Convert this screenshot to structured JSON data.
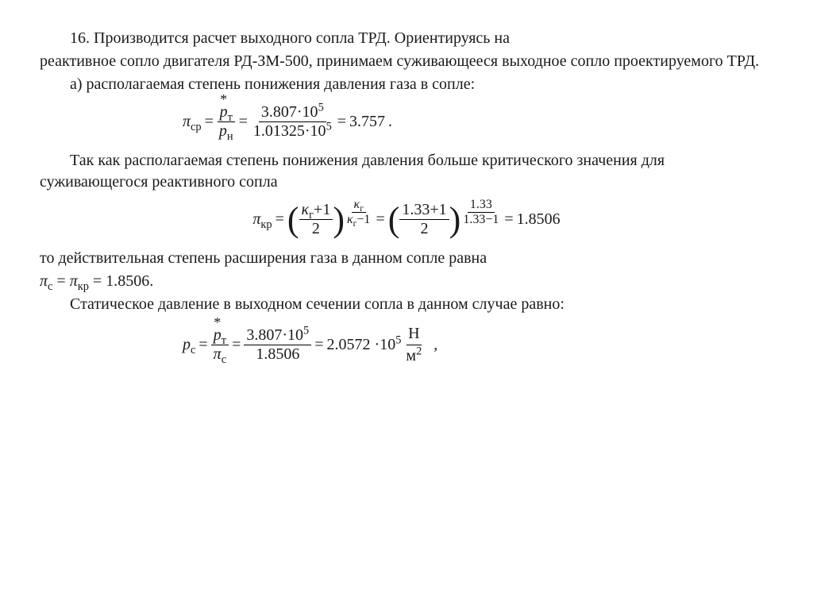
{
  "section_number": "16.",
  "p1a": "Производится расчет выходного сопла ТРД. Ориентируясь на",
  "p1b": "реактивное сопло двигателя РД-ЗМ-500, принимаем суживающееся выходное сопло проектируемого ТРД.",
  "p_a": "а) располагаемая степень понижения давления газа в сопле:",
  "eq1": {
    "lhs_sym": "π",
    "lhs_sub": "ср",
    "frac1_num_sym": "p",
    "frac1_num_sub": "т",
    "frac1_den_sym": "p",
    "frac1_den_sub": "н",
    "num2": "3.807·10",
    "num2_sup": "5",
    "den2": "1.01325·10",
    "den2_sup": "5",
    "result": "3.757",
    "trail": "."
  },
  "p2a": "Так как располагаемая степень понижения давления больше критического значения для суживающегося реактивного сопла",
  "eq2": {
    "lhs_sym": "π",
    "lhs_sub": "кр",
    "inner_num_a": "κ",
    "inner_num_a_sub": "г",
    "inner_num_b": "+1",
    "inner_den": "2",
    "exp_num_sym": "κ",
    "exp_num_sub": "г",
    "exp_den_a": "κ",
    "exp_den_a_sub": "г",
    "exp_den_b": "−1",
    "inner2_num": "1.33+1",
    "inner2_den": "2",
    "exp2_num": "1.33",
    "exp2_den": "1.33−1",
    "result": "1.8506"
  },
  "p3_line": "то действительная степень расширения газа в данном сопле равна",
  "eq3": {
    "sym1": "π",
    "sub1": "с",
    "sym2": "π",
    "sub2": "кр",
    "val": "1.8506",
    "trail": "."
  },
  "p4": "Статическое давление в выходном сечении сопла в данном случае равно:",
  "eq4": {
    "lhs_sym": "p",
    "lhs_sub": "с",
    "frac1_num_sym": "p",
    "frac1_num_sub": "т",
    "frac1_den_sym": "π",
    "frac1_den_sub": "с",
    "num2": "3.807·10",
    "num2_sup": "5",
    "den2": "1.8506",
    "result": "2.0572 ·10",
    "result_sup": "5",
    "unit_num": "Н",
    "unit_den_base": "м",
    "unit_den_sup": "2",
    "trail": ","
  },
  "style": {
    "font_family": "Times New Roman",
    "font_size_pt": 15,
    "text_color": "#1a1a1a",
    "background": "#ffffff"
  }
}
